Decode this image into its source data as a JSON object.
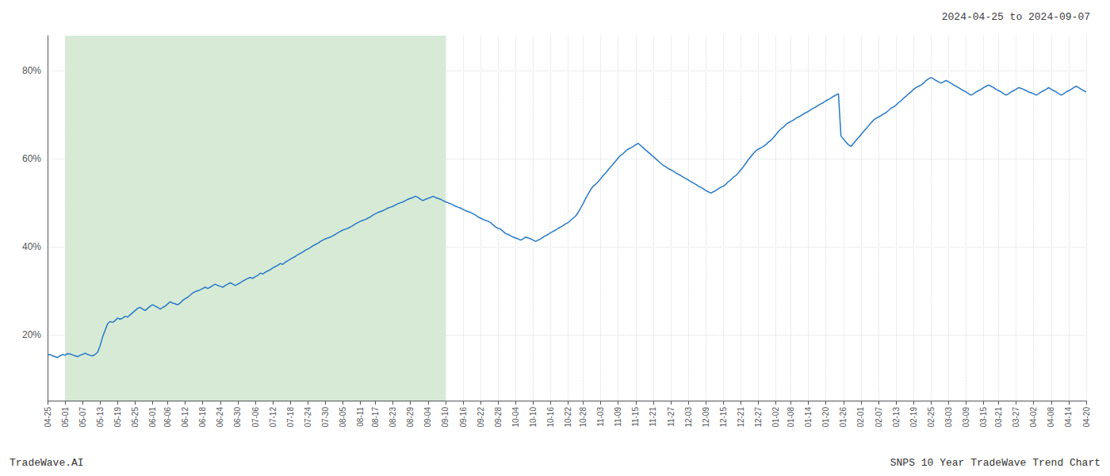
{
  "chart_data": {
    "type": "line",
    "title": "2024-04-25 to 2024-09-07",
    "annotations": [
      "TradeWave.AI",
      "SNPS 10 Year TradeWave Trend Chart"
    ],
    "color": "#2878c8",
    "highlight": {
      "start": "05-01",
      "end": "09-10",
      "color": "#d6ead6"
    },
    "grid": true,
    "ylim": [
      0.05,
      0.88
    ],
    "yticks": [
      {
        "value": 0.2,
        "label": "20%"
      },
      {
        "value": 0.4,
        "label": "40%"
      },
      {
        "value": 0.6,
        "label": "60%"
      },
      {
        "value": 0.8,
        "label": "80%"
      }
    ],
    "categories": [
      "04-25",
      null,
      null,
      null,
      null,
      null,
      null,
      "05-01",
      null,
      null,
      null,
      null,
      null,
      null,
      "05-07",
      null,
      null,
      null,
      null,
      null,
      null,
      "05-13",
      null,
      null,
      null,
      null,
      null,
      null,
      "05-19",
      null,
      null,
      null,
      null,
      null,
      null,
      "05-25",
      null,
      null,
      null,
      null,
      null,
      null,
      "06-01",
      null,
      null,
      null,
      null,
      null,
      "06-06",
      null,
      null,
      null,
      null,
      null,
      null,
      "06-12",
      null,
      null,
      null,
      null,
      null,
      null,
      "06-18",
      null,
      null,
      null,
      null,
      null,
      null,
      "06-24",
      null,
      null,
      null,
      null,
      null,
      null,
      "06-30",
      null,
      null,
      null,
      null,
      null,
      null,
      "07-06",
      null,
      null,
      null,
      null,
      null,
      null,
      "07-12",
      null,
      null,
      null,
      null,
      null,
      null,
      "07-18",
      null,
      null,
      null,
      null,
      null,
      null,
      "07-24",
      null,
      null,
      null,
      null,
      null,
      null,
      "07-30",
      null,
      null,
      null,
      null,
      null,
      null,
      "08-05",
      null,
      null,
      null,
      null,
      null,
      null,
      "08-11",
      null,
      null,
      null,
      null,
      null,
      "08-17",
      null,
      null,
      null,
      null,
      null,
      null,
      "08-23",
      null,
      null,
      null,
      null,
      null,
      null,
      "08-29",
      null,
      null,
      null,
      null,
      null,
      null,
      "09-04",
      null,
      null,
      null,
      null,
      null,
      null,
      "09-10",
      null,
      null,
      null,
      null,
      null,
      null,
      "09-16",
      null,
      null,
      null,
      null,
      null,
      null,
      "09-22",
      null,
      null,
      null,
      null,
      null,
      null,
      "09-28",
      null,
      null,
      null,
      null,
      null,
      null,
      "10-04",
      null,
      null,
      null,
      null,
      null,
      null,
      "10-10",
      null,
      null,
      null,
      null,
      null,
      null,
      "10-16",
      null,
      null,
      null,
      null,
      null,
      null,
      "10-22",
      null,
      null,
      null,
      null,
      null,
      "10-28",
      null,
      null,
      null,
      null,
      null,
      null,
      "11-03",
      null,
      null,
      null,
      null,
      null,
      null,
      "11-09",
      null,
      null,
      null,
      null,
      null,
      null,
      "11-15",
      null,
      null,
      null,
      null,
      null,
      null,
      "11-21",
      null,
      null,
      null,
      null,
      null,
      null,
      "11-27",
      null,
      null,
      null,
      null,
      null,
      null,
      "12-03",
      null,
      null,
      null,
      null,
      null,
      null,
      "12-09",
      null,
      null,
      null,
      null,
      null,
      null,
      "12-15",
      null,
      null,
      null,
      null,
      null,
      null,
      "12-21",
      null,
      null,
      null,
      null,
      null,
      null,
      "12-27",
      null,
      null,
      null,
      null,
      null,
      null,
      "01-02",
      null,
      null,
      null,
      null,
      null,
      "01-08",
      null,
      null,
      null,
      null,
      null,
      null,
      "01-14",
      null,
      null,
      null,
      null,
      null,
      null,
      "01-20",
      null,
      null,
      null,
      null,
      null,
      null,
      "01-26",
      null,
      null,
      null,
      null,
      null,
      null,
      "02-01",
      null,
      null,
      null,
      null,
      null,
      null,
      "02-07",
      null,
      null,
      null,
      null,
      null,
      null,
      "02-13",
      null,
      null,
      null,
      null,
      null,
      null,
      "02-19",
      null,
      null,
      null,
      null,
      null,
      null,
      "02-25",
      null,
      null,
      null,
      null,
      null,
      null,
      "03-03",
      null,
      null,
      null,
      null,
      null,
      null,
      "03-09",
      null,
      null,
      null,
      null,
      null,
      null,
      "03-15",
      null,
      null,
      null,
      null,
      null,
      "03-21",
      null,
      null,
      null,
      null,
      null,
      null,
      "03-27",
      null,
      null,
      null,
      null,
      null,
      null,
      "04-02",
      null,
      null,
      null,
      null,
      null,
      null,
      "04-08",
      null,
      null,
      null,
      null,
      null,
      null,
      "04-14",
      null,
      null,
      null,
      null,
      null,
      null,
      "04-20"
    ],
    "values": [
      0.153,
      0.155,
      0.152,
      0.15,
      0.148,
      0.152,
      0.155,
      0.153,
      0.157,
      0.156,
      0.154,
      0.152,
      0.15,
      0.153,
      0.155,
      0.158,
      0.155,
      0.153,
      0.152,
      0.155,
      0.16,
      0.175,
      0.195,
      0.21,
      0.225,
      0.23,
      0.228,
      0.232,
      0.238,
      0.235,
      0.238,
      0.242,
      0.24,
      0.245,
      0.25,
      0.255,
      0.26,
      0.262,
      0.258,
      0.255,
      0.26,
      0.265,
      0.268,
      0.265,
      0.262,
      0.258,
      0.262,
      0.265,
      0.27,
      0.275,
      0.272,
      0.27,
      0.268,
      0.272,
      0.278,
      0.282,
      0.285,
      0.29,
      0.295,
      0.298,
      0.3,
      0.302,
      0.305,
      0.308,
      0.305,
      0.308,
      0.312,
      0.315,
      0.312,
      0.31,
      0.308,
      0.312,
      0.315,
      0.318,
      0.315,
      0.312,
      0.315,
      0.318,
      0.322,
      0.325,
      0.328,
      0.33,
      0.328,
      0.332,
      0.335,
      0.34,
      0.338,
      0.342,
      0.345,
      0.348,
      0.352,
      0.355,
      0.358,
      0.362,
      0.36,
      0.365,
      0.368,
      0.372,
      0.375,
      0.378,
      0.382,
      0.385,
      0.388,
      0.392,
      0.395,
      0.398,
      0.402,
      0.405,
      0.408,
      0.412,
      0.415,
      0.418,
      0.42,
      0.422,
      0.425,
      0.428,
      0.432,
      0.435,
      0.438,
      0.44,
      0.442,
      0.445,
      0.448,
      0.452,
      0.455,
      0.458,
      0.46,
      0.462,
      0.465,
      0.468,
      0.472,
      0.475,
      0.478,
      0.48,
      0.482,
      0.485,
      0.488,
      0.49,
      0.492,
      0.495,
      0.498,
      0.5,
      0.502,
      0.505,
      0.508,
      0.51,
      0.512,
      0.515,
      0.512,
      0.508,
      0.505,
      0.508,
      0.51,
      0.512,
      0.515,
      0.512,
      0.51,
      0.508,
      0.505,
      0.502,
      0.5,
      0.498,
      0.495,
      0.492,
      0.49,
      0.488,
      0.485,
      0.482,
      0.48,
      0.478,
      0.475,
      0.472,
      0.468,
      0.465,
      0.462,
      0.46,
      0.458,
      0.455,
      0.45,
      0.445,
      0.442,
      0.44,
      0.435,
      0.43,
      0.428,
      0.425,
      0.422,
      0.42,
      0.418,
      0.415,
      0.418,
      0.422,
      0.42,
      0.418,
      0.415,
      0.412,
      0.415,
      0.418,
      0.422,
      0.425,
      0.428,
      0.432,
      0.435,
      0.438,
      0.442,
      0.445,
      0.448,
      0.452,
      0.455,
      0.46,
      0.465,
      0.47,
      0.478,
      0.488,
      0.498,
      0.51,
      0.52,
      0.53,
      0.538,
      0.542,
      0.548,
      0.555,
      0.562,
      0.568,
      0.575,
      0.582,
      0.588,
      0.595,
      0.602,
      0.608,
      0.612,
      0.618,
      0.622,
      0.625,
      0.628,
      0.632,
      0.635,
      0.63,
      0.625,
      0.62,
      0.615,
      0.61,
      0.605,
      0.6,
      0.595,
      0.59,
      0.585,
      0.582,
      0.578,
      0.575,
      0.572,
      0.568,
      0.565,
      0.562,
      0.558,
      0.555,
      0.552,
      0.548,
      0.545,
      0.542,
      0.538,
      0.535,
      0.532,
      0.528,
      0.525,
      0.522,
      0.525,
      0.528,
      0.532,
      0.535,
      0.538,
      0.542,
      0.548,
      0.552,
      0.558,
      0.562,
      0.568,
      0.575,
      0.582,
      0.59,
      0.598,
      0.605,
      0.612,
      0.618,
      0.622,
      0.625,
      0.628,
      0.632,
      0.638,
      0.642,
      0.648,
      0.655,
      0.662,
      0.668,
      0.672,
      0.678,
      0.682,
      0.685,
      0.688,
      0.692,
      0.695,
      0.698,
      0.702,
      0.705,
      0.708,
      0.712,
      0.715,
      0.718,
      0.722,
      0.725,
      0.728,
      0.732,
      0.735,
      0.738,
      0.742,
      0.745,
      0.748,
      0.652,
      0.645,
      0.638,
      0.632,
      0.628,
      0.635,
      0.642,
      0.648,
      0.655,
      0.662,
      0.668,
      0.675,
      0.682,
      0.688,
      0.692,
      0.695,
      0.698,
      0.702,
      0.705,
      0.71,
      0.715,
      0.718,
      0.722,
      0.728,
      0.732,
      0.738,
      0.742,
      0.748,
      0.752,
      0.758,
      0.762,
      0.765,
      0.768,
      0.772,
      0.778,
      0.782,
      0.785,
      0.782,
      0.778,
      0.775,
      0.772,
      0.775,
      0.778,
      0.775,
      0.772,
      0.768,
      0.765,
      0.762,
      0.758,
      0.755,
      0.752,
      0.748,
      0.745,
      0.748,
      0.752,
      0.755,
      0.758,
      0.762,
      0.765,
      0.768,
      0.765,
      0.762,
      0.758,
      0.755,
      0.752,
      0.748,
      0.745,
      0.748,
      0.752,
      0.755,
      0.758,
      0.762,
      0.76,
      0.758,
      0.755,
      0.752,
      0.75,
      0.748,
      0.745,
      0.748,
      0.752,
      0.755,
      0.758,
      0.762,
      0.758,
      0.755,
      0.752,
      0.748,
      0.745,
      0.748,
      0.752,
      0.755,
      0.758,
      0.762,
      0.765,
      0.762,
      0.758,
      0.755,
      0.752
    ]
  }
}
